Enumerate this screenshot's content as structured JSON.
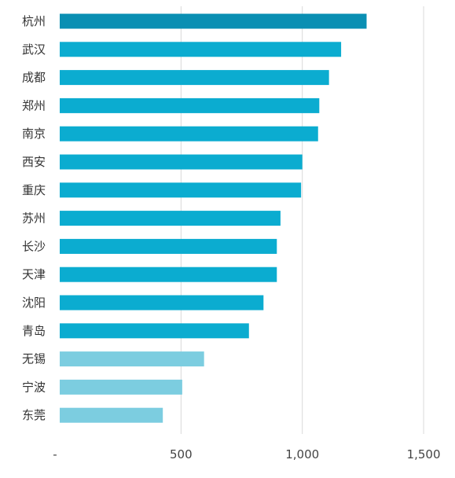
{
  "chart_data": {
    "type": "bar",
    "orientation": "horizontal",
    "title": "",
    "xlabel": "",
    "ylabel": "",
    "categories": [
      "杭州",
      "武汉",
      "成都",
      "郑州",
      "南京",
      "西安",
      "重庆",
      "苏州",
      "长沙",
      "天津",
      "沈阳",
      "青岛",
      "无锡",
      "宁波",
      "东莞"
    ],
    "values": [
      1265,
      1160,
      1110,
      1070,
      1065,
      1000,
      995,
      910,
      895,
      895,
      840,
      780,
      595,
      505,
      425
    ],
    "x_ticks": [
      0,
      500,
      1000,
      1500
    ],
    "x_tick_labels": [
      "-",
      "500",
      "1,000",
      "1,500"
    ],
    "xlim": [
      0,
      1500
    ],
    "grid": "vertical",
    "legend": "none",
    "colors": {
      "top_bar": "#0a8fb3",
      "standard_bar": "#0bacd0",
      "light_bar": "#7ccde0",
      "gridline": "#d9d9d9",
      "label": "#333333"
    },
    "bar_color_groups": [
      "top",
      "standard",
      "standard",
      "standard",
      "standard",
      "standard",
      "standard",
      "standard",
      "standard",
      "standard",
      "standard",
      "standard",
      "light",
      "light",
      "light"
    ]
  }
}
